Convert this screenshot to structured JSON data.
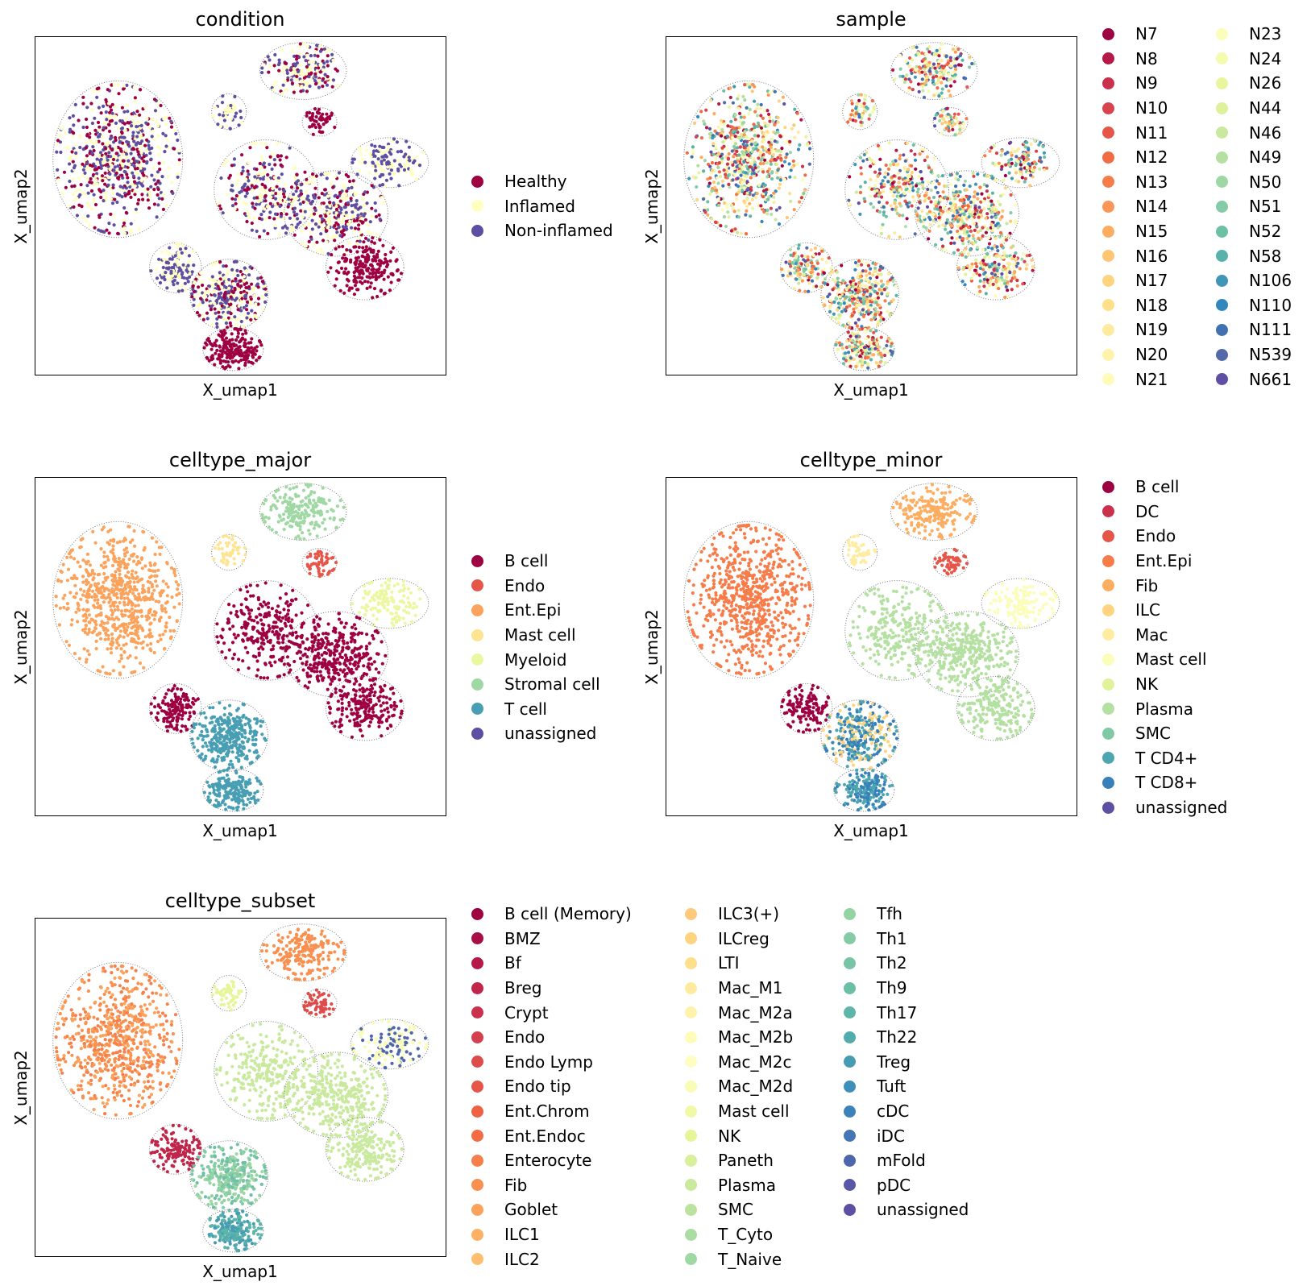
{
  "chart_data": [
    {
      "type": "scatter",
      "title": "condition",
      "xlabel": "X_umap1",
      "ylabel": "X_umap2",
      "legend": "right",
      "grid": false,
      "legend_columns": 1,
      "categories": [
        "Healthy",
        "Inflamed",
        "Non-inflamed"
      ],
      "colors": [
        "#9e0142",
        "#ffffbf",
        "#5e4fa2"
      ]
    },
    {
      "type": "scatter",
      "title": "sample",
      "xlabel": "X_umap1",
      "ylabel": "X_umap2",
      "legend": "right",
      "grid": false,
      "legend_columns": 2,
      "categories": [
        "N7",
        "N8",
        "N9",
        "N10",
        "N11",
        "N12",
        "N13",
        "N14",
        "N15",
        "N16",
        "N17",
        "N18",
        "N19",
        "N20",
        "N21",
        "N23",
        "N24",
        "N26",
        "N44",
        "N46",
        "N49",
        "N50",
        "N51",
        "N52",
        "N58",
        "N106",
        "N110",
        "N111",
        "N539",
        "N661"
      ],
      "colors": [
        "#9e0142",
        "#b41947",
        "#c9314c",
        "#d8434e",
        "#e55649",
        "#f06c45",
        "#f67c4a",
        "#fa9656",
        "#fdad60",
        "#fdc574",
        "#fed481",
        "#fee08b",
        "#feeb9d",
        "#fff3ac",
        "#fffbb9",
        "#fbfdba",
        "#f4faae",
        "#e9f69d",
        "#dcf199",
        "#c9e99e",
        "#b4e0a2",
        "#9fd7a4",
        "#86cba7",
        "#6dc0a5",
        "#58b2aa",
        "#3f96b7",
        "#3288bd",
        "#4271b1",
        "#5469aa",
        "#5e4fa2"
      ]
    },
    {
      "type": "scatter",
      "title": "celltype_major",
      "xlabel": "X_umap1",
      "ylabel": "X_umap2",
      "legend": "right",
      "grid": false,
      "legend_columns": 1,
      "categories": [
        "B cell",
        "Endo",
        "Ent.Epi",
        "Mast cell",
        "Myeloid",
        "Stromal cell",
        "T cell",
        "unassigned"
      ],
      "colors": [
        "#9e0142",
        "#e55649",
        "#fba35c",
        "#fee390",
        "#ecf7a1",
        "#a0d8a4",
        "#489fb4",
        "#5e4fa2"
      ]
    },
    {
      "type": "scatter",
      "title": "celltype_minor",
      "xlabel": "X_umap1",
      "ylabel": "X_umap2",
      "legend": "right",
      "grid": false,
      "legend_columns": 1,
      "categories": [
        "B cell",
        "DC",
        "Endo",
        "Ent.Epi",
        "Fib",
        "ILC",
        "Mac",
        "Mast cell",
        "NK",
        "Plasma",
        "SMC",
        "T CD4+",
        "T CD8+",
        "unassigned"
      ],
      "colors": [
        "#9e0142",
        "#c9314c",
        "#e55649",
        "#f67c4a",
        "#fdad60",
        "#fed481",
        "#feeda1",
        "#fbfdba",
        "#e0f29b",
        "#b4e0a2",
        "#7fcaa5",
        "#4ea7b0",
        "#3880b9",
        "#5e4fa2"
      ]
    },
    {
      "type": "scatter",
      "title": "celltype_subset",
      "xlabel": "X_umap1",
      "ylabel": "X_umap2",
      "legend": "right",
      "grid": false,
      "legend_columns": 3,
      "categories": [
        "B cell (Memory)",
        "BMZ",
        "Bf",
        "Breg",
        "Crypt",
        "Endo",
        "Endo Lymp",
        "Endo tip",
        "Ent.Chrom",
        "Ent.Endoc",
        "Enterocyte",
        "Fib",
        "Goblet",
        "ILC1",
        "ILC2",
        "ILC3(+)",
        "ILCreg",
        "LTI",
        "Mac_M1",
        "Mac_M2a",
        "Mac_M2b",
        "Mac_M2c",
        "Mac_M2d",
        "Mast cell",
        "NK",
        "Paneth",
        "Plasma",
        "SMC",
        "T_Cyto",
        "T_Naive",
        "Tfh",
        "Th1",
        "Th2",
        "Th9",
        "Th17",
        "Th22",
        "Treg",
        "Tuft",
        "cDC",
        "iDC",
        "mFold",
        "pDC",
        "unassigned"
      ],
      "colors": [
        "#9e0142",
        "#a90d45",
        "#b41947",
        "#c0264a",
        "#c9314c",
        "#d3404e",
        "#dd4b4b",
        "#e55649",
        "#ed6145",
        "#f26d45",
        "#f6804c",
        "#f9904f",
        "#fba35c",
        "#fdb164",
        "#fdbf6f",
        "#fec97a",
        "#fed481",
        "#fee08b",
        "#feeb9d",
        "#fff3ac",
        "#fffbb9",
        "#fefec2",
        "#f8fcb4",
        "#f1f9a9",
        "#e6f598",
        "#d8ef9b",
        "#c9e99e",
        "#bae3a0",
        "#abdca3",
        "#a0d8a4",
        "#94d3a4",
        "#86cba7",
        "#78c4a5",
        "#6bbfa5",
        "#5db6a9",
        "#52acad",
        "#469cb3",
        "#3e8fb9",
        "#3b82ba",
        "#4575b4",
        "#4e66ac",
        "#5858a7",
        "#5e4fa2"
      ]
    }
  ]
}
